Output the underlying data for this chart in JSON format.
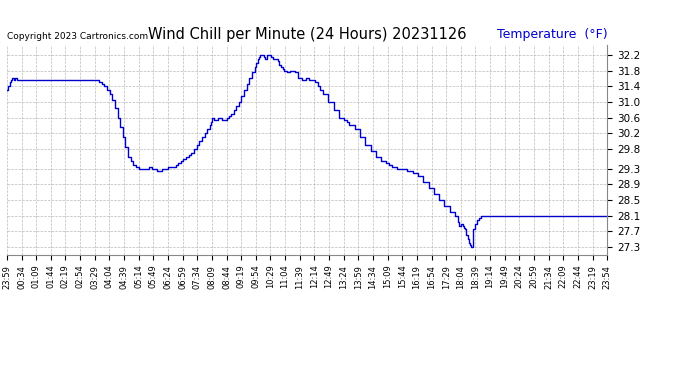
{
  "title": "Wind Chill per Minute (24 Hours) 20231126",
  "ylabel": "Temperature  (°F)",
  "copyright": "Copyright 2023 Cartronics.com",
  "line_color": "#0000cc",
  "background_color": "#ffffff",
  "grid_color": "#aaaaaa",
  "ylabel_color": "#0000cc",
  "ylim": [
    27.1,
    32.45
  ],
  "yticks": [
    27.3,
    27.7,
    28.1,
    28.5,
    28.9,
    29.3,
    29.8,
    30.2,
    30.6,
    31.0,
    31.4,
    31.8,
    32.2
  ],
  "x_labels": [
    "23:59",
    "00:34",
    "01:09",
    "01:44",
    "02:19",
    "02:54",
    "03:29",
    "04:04",
    "04:39",
    "05:14",
    "05:49",
    "06:24",
    "06:59",
    "07:34",
    "08:09",
    "08:44",
    "09:19",
    "09:54",
    "10:29",
    "11:04",
    "11:39",
    "12:14",
    "12:49",
    "13:24",
    "13:59",
    "14:34",
    "15:09",
    "15:44",
    "16:19",
    "16:54",
    "17:29",
    "18:04",
    "18:39",
    "19:14",
    "19:49",
    "20:24",
    "20:59",
    "21:34",
    "22:09",
    "22:44",
    "23:19",
    "23:54"
  ],
  "data": [
    [
      0,
      31.3
    ],
    [
      2,
      31.4
    ],
    [
      5,
      31.5
    ],
    [
      8,
      31.55
    ],
    [
      10,
      31.6
    ],
    [
      13,
      31.55
    ],
    [
      16,
      31.6
    ],
    [
      20,
      31.55
    ],
    [
      25,
      31.55
    ],
    [
      30,
      31.55
    ],
    [
      35,
      31.55
    ],
    [
      40,
      31.55
    ],
    [
      50,
      31.55
    ],
    [
      60,
      31.55
    ],
    [
      70,
      31.55
    ],
    [
      75,
      31.55
    ],
    [
      80,
      31.55
    ],
    [
      85,
      31.55
    ],
    [
      90,
      31.55
    ],
    [
      95,
      31.55
    ],
    [
      100,
      31.55
    ],
    [
      105,
      31.55
    ],
    [
      110,
      31.55
    ],
    [
      115,
      31.55
    ],
    [
      120,
      31.55
    ],
    [
      125,
      31.55
    ],
    [
      130,
      31.55
    ],
    [
      135,
      31.55
    ],
    [
      140,
      31.55
    ],
    [
      145,
      31.55
    ],
    [
      150,
      31.55
    ],
    [
      155,
      31.55
    ],
    [
      160,
      31.55
    ],
    [
      165,
      31.55
    ],
    [
      170,
      31.55
    ],
    [
      175,
      31.5
    ],
    [
      180,
      31.45
    ],
    [
      185,
      31.4
    ],
    [
      190,
      31.3
    ],
    [
      195,
      31.2
    ],
    [
      200,
      31.05
    ],
    [
      205,
      30.85
    ],
    [
      210,
      30.6
    ],
    [
      215,
      30.35
    ],
    [
      220,
      30.1
    ],
    [
      225,
      29.85
    ],
    [
      230,
      29.6
    ],
    [
      235,
      29.5
    ],
    [
      240,
      29.4
    ],
    [
      245,
      29.35
    ],
    [
      250,
      29.3
    ],
    [
      255,
      29.3
    ],
    [
      260,
      29.3
    ],
    [
      265,
      29.3
    ],
    [
      270,
      29.35
    ],
    [
      275,
      29.3
    ],
    [
      280,
      29.3
    ],
    [
      285,
      29.25
    ],
    [
      290,
      29.25
    ],
    [
      295,
      29.3
    ],
    [
      300,
      29.3
    ],
    [
      305,
      29.35
    ],
    [
      310,
      29.35
    ],
    [
      315,
      29.35
    ],
    [
      320,
      29.4
    ],
    [
      325,
      29.45
    ],
    [
      330,
      29.5
    ],
    [
      335,
      29.55
    ],
    [
      340,
      29.6
    ],
    [
      345,
      29.65
    ],
    [
      350,
      29.7
    ],
    [
      355,
      29.8
    ],
    [
      360,
      29.9
    ],
    [
      365,
      30.0
    ],
    [
      370,
      30.1
    ],
    [
      375,
      30.2
    ],
    [
      380,
      30.3
    ],
    [
      385,
      30.4
    ],
    [
      388,
      30.5
    ],
    [
      390,
      30.6
    ],
    [
      393,
      30.55
    ],
    [
      396,
      30.55
    ],
    [
      400,
      30.6
    ],
    [
      405,
      30.6
    ],
    [
      408,
      30.55
    ],
    [
      412,
      30.55
    ],
    [
      415,
      30.55
    ],
    [
      418,
      30.6
    ],
    [
      422,
      30.65
    ],
    [
      426,
      30.7
    ],
    [
      430,
      30.8
    ],
    [
      435,
      30.9
    ],
    [
      440,
      31.0
    ],
    [
      445,
      31.15
    ],
    [
      450,
      31.3
    ],
    [
      455,
      31.45
    ],
    [
      460,
      31.6
    ],
    [
      465,
      31.75
    ],
    [
      470,
      31.9
    ],
    [
      473,
      32.0
    ],
    [
      476,
      32.1
    ],
    [
      479,
      32.15
    ],
    [
      481,
      32.2
    ],
    [
      483,
      32.2
    ],
    [
      485,
      32.2
    ],
    [
      487,
      32.15
    ],
    [
      490,
      32.1
    ],
    [
      493,
      32.2
    ],
    [
      496,
      32.2
    ],
    [
      499,
      32.2
    ],
    [
      502,
      32.15
    ],
    [
      505,
      32.1
    ],
    [
      508,
      32.1
    ],
    [
      511,
      32.1
    ],
    [
      514,
      32.05
    ],
    [
      517,
      31.95
    ],
    [
      520,
      31.9
    ],
    [
      523,
      31.85
    ],
    [
      526,
      31.8
    ],
    [
      529,
      31.8
    ],
    [
      532,
      31.75
    ],
    [
      535,
      31.75
    ],
    [
      538,
      31.8
    ],
    [
      541,
      31.8
    ],
    [
      544,
      31.8
    ],
    [
      547,
      31.75
    ],
    [
      550,
      31.75
    ],
    [
      553,
      31.6
    ],
    [
      556,
      31.6
    ],
    [
      560,
      31.55
    ],
    [
      565,
      31.55
    ],
    [
      568,
      31.6
    ],
    [
      571,
      31.6
    ],
    [
      574,
      31.55
    ],
    [
      577,
      31.55
    ],
    [
      580,
      31.55
    ],
    [
      585,
      31.5
    ],
    [
      590,
      31.4
    ],
    [
      595,
      31.3
    ],
    [
      600,
      31.2
    ],
    [
      610,
      31.0
    ],
    [
      620,
      30.8
    ],
    [
      630,
      30.6
    ],
    [
      640,
      30.55
    ],
    [
      645,
      30.5
    ],
    [
      650,
      30.4
    ],
    [
      660,
      30.3
    ],
    [
      670,
      30.1
    ],
    [
      680,
      29.9
    ],
    [
      690,
      29.75
    ],
    [
      700,
      29.6
    ],
    [
      710,
      29.5
    ],
    [
      715,
      29.5
    ],
    [
      720,
      29.45
    ],
    [
      725,
      29.4
    ],
    [
      730,
      29.35
    ],
    [
      735,
      29.35
    ],
    [
      740,
      29.3
    ],
    [
      750,
      29.3
    ],
    [
      760,
      29.25
    ],
    [
      770,
      29.2
    ],
    [
      780,
      29.1
    ],
    [
      790,
      28.95
    ],
    [
      800,
      28.8
    ],
    [
      810,
      28.65
    ],
    [
      820,
      28.5
    ],
    [
      830,
      28.35
    ],
    [
      840,
      28.2
    ],
    [
      850,
      28.1
    ],
    [
      855,
      27.95
    ],
    [
      858,
      27.85
    ],
    [
      860,
      27.85
    ],
    [
      862,
      27.9
    ],
    [
      864,
      27.9
    ],
    [
      866,
      27.85
    ],
    [
      868,
      27.8
    ],
    [
      870,
      27.75
    ],
    [
      872,
      27.6
    ],
    [
      874,
      27.5
    ],
    [
      876,
      27.4
    ],
    [
      878,
      27.35
    ],
    [
      880,
      27.3
    ],
    [
      882,
      27.3
    ],
    [
      885,
      27.75
    ],
    [
      888,
      27.9
    ],
    [
      892,
      28.0
    ],
    [
      896,
      28.05
    ],
    [
      900,
      28.1
    ],
    [
      950,
      28.1
    ],
    [
      1000,
      28.1
    ],
    [
      1050,
      28.1
    ],
    [
      1100,
      28.1
    ],
    [
      1139,
      28.1
    ]
  ]
}
